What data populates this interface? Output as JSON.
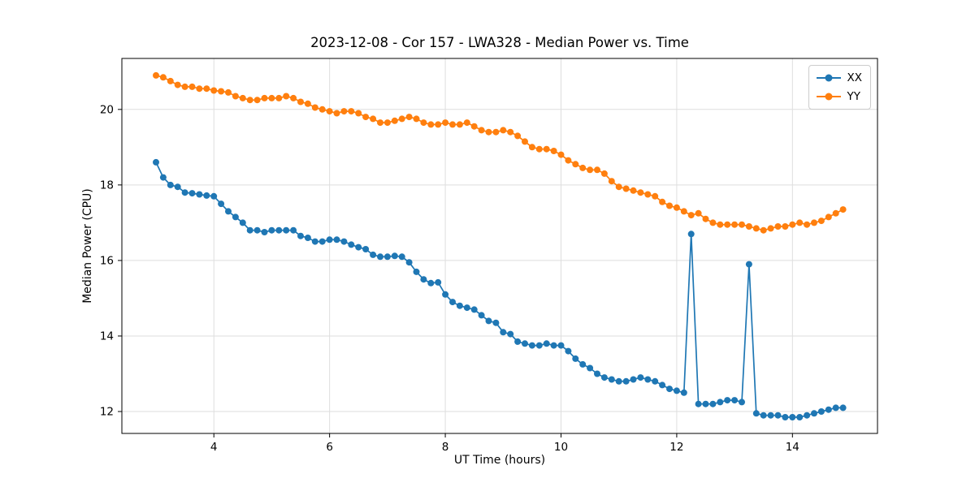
{
  "chart_data": {
    "type": "line",
    "title": "2023-12-08 - Cor 157 - LWA328 - Median Power vs. Time",
    "xlabel": "UT Time (hours)",
    "ylabel": "Median Power (CPU)",
    "xlim": [
      2.41,
      15.47
    ],
    "ylim": [
      11.42,
      21.35
    ],
    "xticks": [
      4,
      6,
      8,
      10,
      12,
      14
    ],
    "yticks": [
      12,
      14,
      16,
      18,
      20
    ],
    "grid": true,
    "legend_position": "upper right",
    "x_start": 3.0,
    "x_step": 0.125,
    "series": [
      {
        "name": "XX",
        "color": "#1f77b4",
        "values": [
          18.6,
          18.2,
          18.0,
          17.95,
          17.8,
          17.78,
          17.75,
          17.72,
          17.7,
          17.5,
          17.3,
          17.15,
          17.0,
          16.8,
          16.8,
          16.75,
          16.8,
          16.8,
          16.8,
          16.8,
          16.65,
          16.6,
          16.5,
          16.5,
          16.55,
          16.55,
          16.5,
          16.42,
          16.35,
          16.3,
          16.15,
          16.1,
          16.1,
          16.12,
          16.1,
          15.95,
          15.7,
          15.5,
          15.4,
          15.42,
          15.1,
          14.9,
          14.8,
          14.75,
          14.7,
          14.55,
          14.4,
          14.35,
          14.1,
          14.05,
          13.85,
          13.8,
          13.75,
          13.75,
          13.8,
          13.75,
          13.75,
          13.6,
          13.4,
          13.25,
          13.15,
          13.0,
          12.9,
          12.85,
          12.8,
          12.8,
          12.85,
          12.9,
          12.85,
          12.8,
          12.7,
          12.6,
          12.55,
          12.5,
          16.7,
          12.2,
          12.2,
          12.2,
          12.25,
          12.3,
          12.3,
          12.25,
          15.9,
          11.95,
          11.9,
          11.9,
          11.9,
          11.85,
          11.85,
          11.85,
          11.9,
          11.95,
          12.0,
          12.05,
          12.1,
          12.1
        ]
      },
      {
        "name": "YY",
        "color": "#ff7f0e",
        "values": [
          20.9,
          20.85,
          20.75,
          20.65,
          20.6,
          20.6,
          20.55,
          20.55,
          20.5,
          20.48,
          20.45,
          20.35,
          20.3,
          20.25,
          20.25,
          20.3,
          20.3,
          20.3,
          20.35,
          20.3,
          20.2,
          20.15,
          20.05,
          20.0,
          19.95,
          19.9,
          19.95,
          19.95,
          19.9,
          19.8,
          19.75,
          19.65,
          19.65,
          19.7,
          19.75,
          19.8,
          19.75,
          19.65,
          19.6,
          19.6,
          19.65,
          19.6,
          19.6,
          19.65,
          19.55,
          19.45,
          19.4,
          19.4,
          19.45,
          19.4,
          19.3,
          19.15,
          19.0,
          18.95,
          18.95,
          18.9,
          18.8,
          18.65,
          18.55,
          18.45,
          18.4,
          18.4,
          18.3,
          18.1,
          17.95,
          17.9,
          17.85,
          17.8,
          17.75,
          17.7,
          17.55,
          17.45,
          17.4,
          17.3,
          17.2,
          17.25,
          17.1,
          17.0,
          16.95,
          16.95,
          16.95,
          16.95,
          16.9,
          16.85,
          16.8,
          16.85,
          16.9,
          16.9,
          16.95,
          17.0,
          16.95,
          17.0,
          17.05,
          17.15,
          17.25,
          17.35
        ]
      }
    ]
  }
}
